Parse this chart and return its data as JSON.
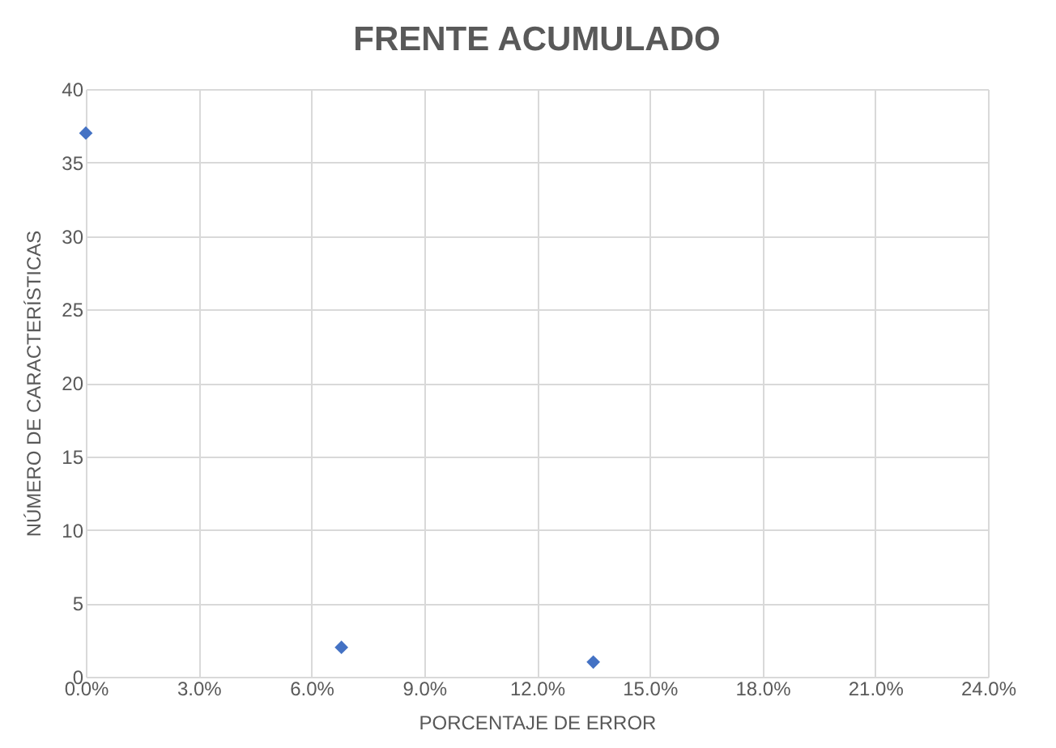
{
  "chart_data": {
    "type": "scatter",
    "title": "FRENTE ACUMULADO",
    "xlabel": "PORCENTAJE DE ERROR",
    "ylabel": "NÚMERO DE CARACTERÍSTICAS",
    "x": [
      0,
      6.8,
      13.5
    ],
    "series": [
      {
        "color": "#4472c4",
        "values": [
          37,
          2,
          1
        ]
      }
    ],
    "xlim": [
      0,
      24
    ],
    "xticks": [
      {
        "value": 0,
        "label": "0.0%"
      },
      {
        "value": 3,
        "label": "3.0%"
      },
      {
        "value": 6,
        "label": "6.0%"
      },
      {
        "value": 9,
        "label": "9.0%"
      },
      {
        "value": 12,
        "label": "12.0%"
      },
      {
        "value": 15,
        "label": "15.0%"
      },
      {
        "value": 18,
        "label": "18.0%"
      },
      {
        "value": 21,
        "label": "21.0%"
      },
      {
        "value": 24,
        "label": "24.0%"
      }
    ],
    "ylim": [
      0,
      40
    ],
    "yticks": [
      0,
      5,
      10,
      15,
      20,
      25,
      30,
      35,
      40
    ],
    "grid": true,
    "marker": "diamond"
  }
}
